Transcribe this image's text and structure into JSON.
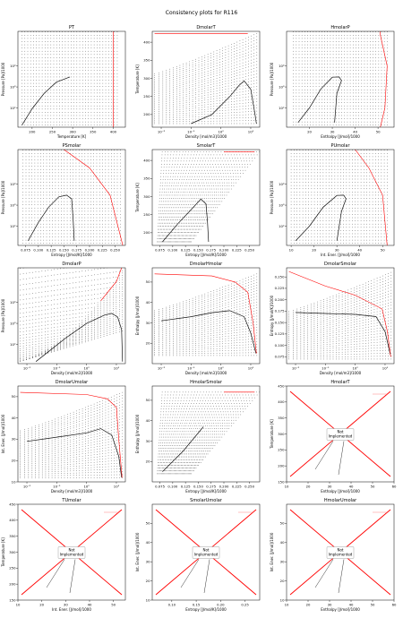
{
  "figure_title": "Consistency plots for R116",
  "colors": {
    "grid_points": "#222222",
    "saturation_curve": "#111111",
    "boundary": "#ff0000",
    "not_implemented_line": "#ff0000",
    "axes": "#000000"
  },
  "not_implemented_text": "Not\nImplemented",
  "chart_data": [
    {
      "id": "PT",
      "type": "scatter",
      "title": "PT",
      "xlabel": "Temperature [K]",
      "ylabel": "Pressure [Pa]/1000",
      "xlog": false,
      "ylog": true,
      "xlim": [
        165,
        430
      ],
      "ylim": [
        12,
        450000
      ],
      "xticks": [
        200,
        250,
        300,
        350,
        400
      ],
      "xticklabels": [
        "200",
        "250",
        "300",
        "350",
        "400"
      ],
      "yticks": [
        100,
        1000,
        10000
      ],
      "yticklabels": [
        "10²",
        "10³",
        "10⁴"
      ],
      "sat_curve": [
        [
          175,
          15
        ],
        [
          200,
          90
        ],
        [
          230,
          500
        ],
        [
          260,
          1700
        ],
        [
          293,
          3000
        ]
      ],
      "boundary": [
        [
          400,
          12
        ],
        [
          400,
          450000
        ]
      ],
      "grid": {
        "x": [
          175,
          410
        ],
        "y": [
          15,
          420000
        ],
        "mode": "rect"
      }
    },
    {
      "id": "DmolarT",
      "type": "scatter",
      "title": "DmolarT",
      "xlabel": "Density [mol/m3]/1000",
      "ylabel": "Temperature [K]",
      "xlog": true,
      "ylog": false,
      "xlim": [
        0.005,
        20
      ],
      "ylim": [
        165,
        430
      ],
      "xticks": [
        0.01,
        0.1,
        1,
        10
      ],
      "xticklabels": [
        "10⁻²",
        "10⁻¹",
        "10⁰",
        "10¹"
      ],
      "yticks": [
        200,
        250,
        300,
        350,
        400
      ],
      "yticklabels": [
        "200",
        "250",
        "300",
        "350",
        "400"
      ],
      "sat_curve": [
        [
          0.1,
          175
        ],
        [
          0.5,
          200
        ],
        [
          2,
          250
        ],
        [
          4,
          280
        ],
        [
          6,
          293
        ],
        [
          10,
          270
        ],
        [
          14,
          200
        ],
        [
          15.5,
          175
        ]
      ],
      "boundary": [
        [
          0.006,
          424
        ],
        [
          8,
          424
        ]
      ],
      "grid": {
        "x": [
          0.006,
          16
        ],
        "y": [
          175,
          424
        ],
        "mode": "fanlog"
      }
    },
    {
      "id": "HmolarP",
      "type": "scatter",
      "title": "HmolarP",
      "xlabel": "Enthalpy [J/mol]/1000",
      "ylabel": "Pressure [Pa]/1000",
      "xlog": false,
      "ylog": true,
      "xlim": [
        10,
        57
      ],
      "ylim": [
        12,
        450000
      ],
      "xticks": [
        20,
        30,
        40,
        50
      ],
      "xticklabels": [
        "20",
        "30",
        "40",
        "50"
      ],
      "yticks": [
        100,
        1000,
        10000
      ],
      "yticklabels": [
        "10²",
        "10³",
        "10⁴"
      ],
      "sat_curve": [
        [
          15,
          20
        ],
        [
          20,
          100
        ],
        [
          25,
          800
        ],
        [
          30,
          2900
        ],
        [
          33,
          3000
        ],
        [
          34,
          2000
        ],
        [
          32,
          500
        ],
        [
          31,
          20
        ]
      ],
      "boundary": [
        [
          51,
          12
        ],
        [
          53,
          100
        ],
        [
          54,
          10000
        ],
        [
          51,
          300000
        ],
        [
          51,
          450000
        ]
      ],
      "grid": {
        "x": [
          13,
          54
        ],
        "y": [
          15,
          420000
        ],
        "mode": "rect"
      }
    },
    {
      "id": "PSmolar",
      "type": "scatter",
      "title": "PSmolar",
      "xlabel": "Entropy [J/mol/K]/1000",
      "ylabel": "Pressure [Pa]/1000",
      "xlog": false,
      "ylog": true,
      "xlim": [
        0.06,
        0.27
      ],
      "ylim": [
        12,
        450000
      ],
      "xticks": [
        0.075,
        0.1,
        0.125,
        0.15,
        0.175,
        0.2,
        0.225,
        0.25
      ],
      "xticklabels": [
        "0.075",
        "0.100",
        "0.125",
        "0.150",
        "0.175",
        "0.200",
        "0.225",
        "0.250"
      ],
      "yticks": [
        100,
        1000,
        10000
      ],
      "yticklabels": [
        "10²",
        "10³",
        "10⁴"
      ],
      "sat_curve": [
        [
          0.08,
          20
        ],
        [
          0.1,
          150
        ],
        [
          0.12,
          800
        ],
        [
          0.14,
          2500
        ],
        [
          0.155,
          3000
        ],
        [
          0.165,
          2000
        ],
        [
          0.168,
          200
        ],
        [
          0.17,
          20
        ]
      ],
      "boundary": [
        [
          0.15,
          450000
        ],
        [
          0.2,
          60000
        ],
        [
          0.24,
          3000
        ],
        [
          0.265,
          12
        ]
      ],
      "grid": {
        "x": [
          0.07,
          0.26
        ],
        "y": [
          15,
          420000
        ],
        "mode": "rect"
      }
    },
    {
      "id": "SmolarT",
      "type": "scatter",
      "title": "SmolarT",
      "xlabel": "Entropy [J/mol/K]/1000",
      "ylabel": "Temperature [K]",
      "xlog": false,
      "ylog": false,
      "xlim": [
        0.06,
        0.27
      ],
      "ylim": [
        165,
        430
      ],
      "xticks": [
        0.075,
        0.1,
        0.125,
        0.15,
        0.175,
        0.2,
        0.225,
        0.25
      ],
      "xticklabels": [
        "0.075",
        "0.100",
        "0.125",
        "0.150",
        "0.175",
        "0.200",
        "0.225",
        "0.250"
      ],
      "yticks": [
        200,
        250,
        300,
        350,
        400
      ],
      "yticklabels": [
        "200",
        "250",
        "300",
        "350",
        "400"
      ],
      "sat_curve": [
        [
          0.08,
          175
        ],
        [
          0.11,
          225
        ],
        [
          0.14,
          270
        ],
        [
          0.155,
          293
        ],
        [
          0.165,
          280
        ],
        [
          0.168,
          230
        ],
        [
          0.17,
          175
        ]
      ],
      "boundary": [
        [
          0.2,
          424
        ],
        [
          0.26,
          424
        ]
      ],
      "grid": {
        "x": [
          0.07,
          0.26
        ],
        "y": [
          175,
          424
        ],
        "mode": "shearT"
      }
    },
    {
      "id": "PUmolar",
      "type": "scatter",
      "title": "PUmolar",
      "xlabel": "Int. Ener. [J/mol]/1000",
      "ylabel": "Pressure [Pa]/1000",
      "xlog": false,
      "ylog": true,
      "xlim": [
        8,
        55
      ],
      "ylim": [
        12,
        450000
      ],
      "xticks": [
        10,
        20,
        30,
        40,
        50
      ],
      "xticklabels": [
        "10",
        "20",
        "30",
        "40",
        "50"
      ],
      "yticks": [
        100,
        1000,
        10000
      ],
      "yticklabels": [
        "10²",
        "10³",
        "10⁴"
      ],
      "sat_curve": [
        [
          12,
          20
        ],
        [
          18,
          100
        ],
        [
          24,
          800
        ],
        [
          30,
          2900
        ],
        [
          33,
          3000
        ],
        [
          34,
          2000
        ],
        [
          32,
          500
        ],
        [
          30,
          20
        ]
      ],
      "boundary": [
        [
          38,
          450000
        ],
        [
          44,
          60000
        ],
        [
          50,
          3000
        ],
        [
          52,
          12
        ]
      ],
      "grid": {
        "x": [
          10,
          52
        ],
        "y": [
          15,
          420000
        ],
        "mode": "rect"
      }
    },
    {
      "id": "DmolarP",
      "type": "scatter",
      "title": "DmolarP",
      "xlabel": "Density [mol/m3]/1000",
      "ylabel": "Pressure [Pa]/1000",
      "xlog": true,
      "ylog": true,
      "xlim": [
        0.005,
        20
      ],
      "ylim": [
        12,
        450000
      ],
      "xticks": [
        0.01,
        0.1,
        1,
        10
      ],
      "xticklabels": [
        "10⁻²",
        "10⁻¹",
        "10⁰",
        "10¹"
      ],
      "yticks": [
        100,
        1000,
        10000
      ],
      "yticklabels": [
        "10²",
        "10³",
        "10⁴"
      ],
      "sat_curve": [
        [
          0.02,
          15
        ],
        [
          0.2,
          200
        ],
        [
          1,
          1000
        ],
        [
          4,
          2500
        ],
        [
          7,
          3000
        ],
        [
          11,
          2000
        ],
        [
          15,
          500
        ],
        [
          16,
          15
        ]
      ],
      "boundary": [
        [
          3,
          12000
        ],
        [
          10,
          100000
        ],
        [
          15,
          450000
        ]
      ],
      "grid": {
        "x": [
          0.006,
          16
        ],
        "y": [
          15,
          420000
        ],
        "mode": "diaglog"
      }
    },
    {
      "id": "DmolarHmolar",
      "type": "scatter",
      "title": "DmolarHmolar",
      "xlabel": "Density [mol/m3]/1000",
      "ylabel": "Enthalpy [J/mol]/1000",
      "xlog": true,
      "ylog": false,
      "xlim": [
        0.005,
        20
      ],
      "ylim": [
        10,
        57
      ],
      "xticks": [
        0.01,
        0.1,
        1,
        10
      ],
      "xticklabels": [
        "10⁻²",
        "10⁻¹",
        "10⁰",
        "10¹"
      ],
      "yticks": [
        20,
        30,
        40,
        50
      ],
      "yticklabels": [
        "20",
        "30",
        "40",
        "50"
      ],
      "sat_curve": [
        [
          0.01,
          31
        ],
        [
          0.1,
          33
        ],
        [
          0.5,
          35
        ],
        [
          2,
          36
        ],
        [
          6,
          33
        ],
        [
          10,
          25
        ],
        [
          15,
          15
        ]
      ],
      "boundary": [
        [
          0.006,
          54
        ],
        [
          0.5,
          53
        ],
        [
          3,
          50
        ],
        [
          8,
          45
        ],
        [
          12,
          30
        ],
        [
          15.5,
          15
        ]
      ],
      "grid": {
        "x": [
          0.006,
          16
        ],
        "y": [
          14,
          54
        ],
        "mode": "fanlog"
      }
    },
    {
      "id": "DmolarSmolar",
      "type": "scatter",
      "title": "DmolarSmolar",
      "xlabel": "Density [mol/m3]/1000",
      "ylabel": "Entropy [J/mol/K]/1000",
      "xlog": true,
      "ylog": false,
      "xlim": [
        0.005,
        20
      ],
      "ylim": [
        0.06,
        0.27
      ],
      "xticks": [
        0.01,
        0.1,
        1,
        10
      ],
      "xticklabels": [
        "10⁻²",
        "10⁻¹",
        "10⁰",
        "10¹"
      ],
      "yticks": [
        0.075,
        0.1,
        0.125,
        0.15,
        0.175,
        0.2,
        0.225,
        0.25
      ],
      "yticklabels": [
        "0.075",
        "0.100",
        "0.125",
        "0.150",
        "0.175",
        "0.200",
        "0.225",
        "0.250"
      ],
      "sat_curve": [
        [
          0.01,
          0.172
        ],
        [
          0.1,
          0.17
        ],
        [
          1,
          0.168
        ],
        [
          5,
          0.163
        ],
        [
          10,
          0.13
        ],
        [
          15,
          0.08
        ]
      ],
      "boundary": [
        [
          0.006,
          0.262
        ],
        [
          0.1,
          0.23
        ],
        [
          1,
          0.21
        ],
        [
          8,
          0.18
        ],
        [
          12,
          0.13
        ],
        [
          15.5,
          0.075
        ]
      ],
      "grid": {
        "x": [
          0.006,
          16
        ],
        "y": [
          0.07,
          0.26
        ],
        "mode": "fanlog"
      }
    },
    {
      "id": "DmolarUmolar",
      "type": "scatter",
      "title": "DmolarUmolar",
      "xlabel": "Density [mol/m3]/1000",
      "ylabel": "Int. Ener. [J/mol]/1000",
      "xlog": true,
      "ylog": false,
      "xlim": [
        0.005,
        20
      ],
      "ylim": [
        10,
        55
      ],
      "xticks": [
        0.01,
        0.1,
        1,
        10
      ],
      "xticklabels": [
        "10⁻²",
        "10⁻¹",
        "10⁰",
        "10¹"
      ],
      "yticks": [
        10,
        20,
        30,
        40,
        50
      ],
      "yticklabels": [
        "10",
        "20",
        "30",
        "40",
        "50"
      ],
      "sat_curve": [
        [
          0.01,
          29
        ],
        [
          0.1,
          31
        ],
        [
          1,
          33
        ],
        [
          3,
          35
        ],
        [
          7,
          32
        ],
        [
          12,
          22
        ],
        [
          15,
          12
        ]
      ],
      "boundary": [
        [
          0.006,
          52
        ],
        [
          1,
          51
        ],
        [
          5,
          49
        ],
        [
          10,
          45
        ],
        [
          12,
          30
        ],
        [
          15.5,
          12
        ]
      ],
      "grid": {
        "x": [
          0.006,
          16
        ],
        "y": [
          12,
          52
        ],
        "mode": "fanlog"
      }
    },
    {
      "id": "HmolarSmolar",
      "type": "scatter",
      "title": "HmolarSmolar",
      "xlabel": "Entropy [J/mol/K]/1000",
      "ylabel": "Enthalpy [J/mol]/1000",
      "xlog": false,
      "ylog": false,
      "xlim": [
        0.06,
        0.27
      ],
      "ylim": [
        10,
        57
      ],
      "xticks": [
        0.075,
        0.1,
        0.125,
        0.15,
        0.175,
        0.2,
        0.225,
        0.25
      ],
      "xticklabels": [
        "0.075",
        "0.100",
        "0.125",
        "0.150",
        "0.175",
        "0.200",
        "0.225",
        "0.250"
      ],
      "yticks": [
        20,
        30,
        40,
        50
      ],
      "yticklabels": [
        "20",
        "30",
        "40",
        "50"
      ],
      "sat_curve": [
        [
          0.08,
          15
        ],
        [
          0.12,
          25
        ],
        [
          0.16,
          37
        ]
      ],
      "boundary": [
        [
          0.2,
          54
        ],
        [
          0.26,
          54
        ]
      ],
      "grid": {
        "x": [
          0.07,
          0.26
        ],
        "y": [
          14,
          54
        ],
        "mode": "shearH"
      }
    },
    {
      "id": "HmolarT",
      "type": "not_implemented",
      "title": "HmolarT",
      "xlabel": "Enthalpy [J/mol]/1000",
      "ylabel": "Temperature [K]",
      "xlog": false,
      "ylog": false,
      "xlim": [
        10,
        60
      ],
      "ylim": [
        150,
        450
      ],
      "xticks": [
        10,
        20,
        30,
        40,
        50,
        60
      ],
      "xticklabels": [
        "10",
        "20",
        "30",
        "40",
        "50",
        "60"
      ],
      "yticks": [
        150,
        200,
        250,
        300,
        350,
        400,
        450
      ],
      "yticklabels": [
        "150",
        "200",
        "250",
        "300",
        "350",
        "400",
        "450"
      ]
    },
    {
      "id": "TUmolar",
      "type": "not_implemented",
      "title": "TUmolar",
      "xlabel": "Int. Ener. [J/mol]/1000",
      "ylabel": "Temperature [K]",
      "xlog": false,
      "ylog": false,
      "xlim": [
        10,
        55
      ],
      "ylim": [
        150,
        450
      ],
      "xticks": [
        10,
        20,
        30,
        40,
        50
      ],
      "xticklabels": [
        "10",
        "20",
        "30",
        "40",
        "50"
      ],
      "yticks": [
        150,
        200,
        250,
        300,
        350,
        400,
        450
      ],
      "yticklabels": [
        "150",
        "200",
        "250",
        "300",
        "350",
        "400",
        "450"
      ]
    },
    {
      "id": "SmolarUmolar",
      "type": "not_implemented",
      "title": "SmolarUmolar",
      "xlabel": "Entropy [J/mol/K]/1000",
      "ylabel": "Int. Ener. [J/mol]/1000",
      "xlog": false,
      "ylog": false,
      "xlim": [
        0.06,
        0.28
      ],
      "ylim": [
        10,
        60
      ],
      "xticks": [
        0.1,
        0.15,
        0.2,
        0.25
      ],
      "xticklabels": [
        "0.10",
        "0.15",
        "0.20",
        "0.25"
      ],
      "yticks": [
        10,
        20,
        30,
        40,
        50
      ],
      "yticklabels": [
        "10",
        "20",
        "30",
        "40",
        "50"
      ]
    },
    {
      "id": "HmolarUmolar",
      "type": "not_implemented",
      "title": "HmolarUmolar",
      "xlabel": "Enthalpy [J/mol]/1000",
      "ylabel": "Int. Ener. [J/mol]/1000",
      "xlog": false,
      "ylog": false,
      "xlim": [
        10,
        60
      ],
      "ylim": [
        10,
        60
      ],
      "xticks": [
        10,
        20,
        30,
        40,
        50,
        60
      ],
      "xticklabels": [
        "10",
        "20",
        "30",
        "40",
        "50",
        "60"
      ],
      "yticks": [
        10,
        20,
        30,
        40,
        50
      ],
      "yticklabels": [
        "10",
        "20",
        "30",
        "40",
        "50"
      ]
    }
  ]
}
